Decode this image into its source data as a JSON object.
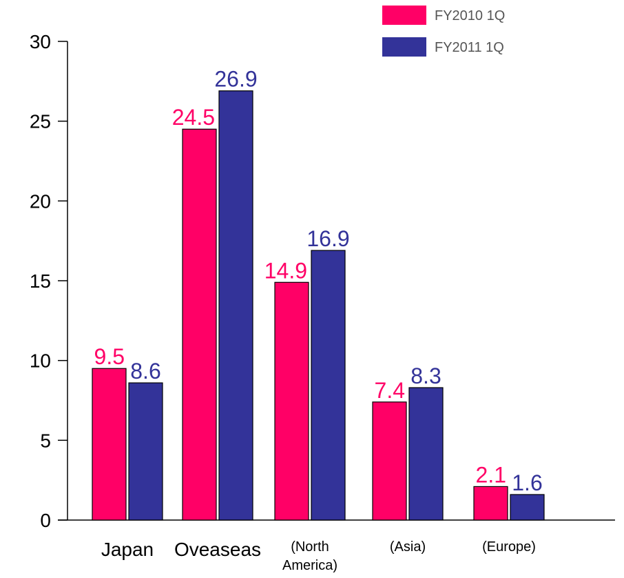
{
  "chart_data": {
    "type": "bar",
    "categories": [
      {
        "lines": [
          "Japan"
        ]
      },
      {
        "lines": [
          "Oveaseas"
        ]
      },
      {
        "lines": [
          "(North",
          "America)"
        ]
      },
      {
        "lines": [
          "(Asia)"
        ]
      },
      {
        "lines": [
          "(Europe)"
        ]
      }
    ],
    "series": [
      {
        "name": "FY2010 1Q",
        "color": "#ff0066",
        "values": [
          9.5,
          24.5,
          14.9,
          7.4,
          2.1
        ],
        "labels": [
          "9.5",
          "24.5",
          "14.9",
          "7.4",
          "2.1"
        ]
      },
      {
        "name": "FY2011 1Q",
        "color": "#333399",
        "values": [
          8.6,
          26.9,
          16.9,
          8.3,
          1.6
        ],
        "labels": [
          "8.6",
          "26.9",
          "16.9",
          "8.3",
          "1.6"
        ]
      }
    ],
    "title": "",
    "xlabel": "",
    "ylabel": "",
    "ylim": [
      0,
      30
    ],
    "yticks": [
      0,
      5,
      10,
      15,
      20,
      25,
      30
    ],
    "grid": false,
    "legend": "top-right"
  }
}
